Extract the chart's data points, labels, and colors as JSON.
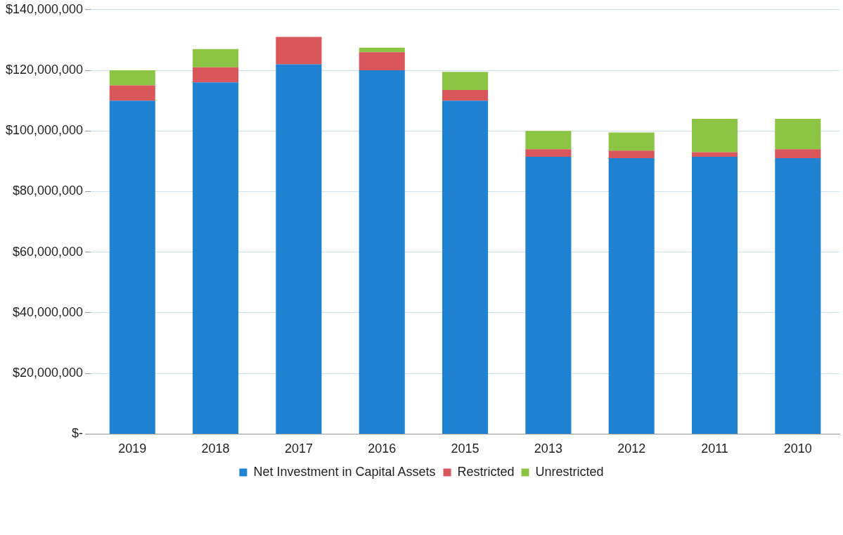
{
  "chart_data": {
    "type": "bar",
    "stacked": true,
    "categories": [
      "2019",
      "2018",
      "2017",
      "2016",
      "2015",
      "2013",
      "2012",
      "2011",
      "2010"
    ],
    "series": [
      {
        "name": "Net Investment in Capital Assets",
        "color": "#1f82d2",
        "values": [
          110000000,
          116000000,
          122000000,
          120000000,
          110000000,
          91500000,
          91000000,
          91500000,
          91000000
        ]
      },
      {
        "name": "Restricted",
        "color": "#d9575a",
        "values": [
          5000000,
          5000000,
          9000000,
          6000000,
          3500000,
          2500000,
          2500000,
          1500000,
          3000000
        ]
      },
      {
        "name": "Unrestricted",
        "color": "#8cc443",
        "values": [
          5000000,
          6000000,
          0,
          1500000,
          6000000,
          6000000,
          6000000,
          11000000,
          10000000
        ]
      }
    ],
    "ylim": [
      0,
      140000000
    ],
    "yticks": [
      {
        "value": 0,
        "label": "$-"
      },
      {
        "value": 20000000,
        "label": "$20,000,000"
      },
      {
        "value": 40000000,
        "label": "$40,000,000"
      },
      {
        "value": 60000000,
        "label": "$60,000,000"
      },
      {
        "value": 80000000,
        "label": "$80,000,000"
      },
      {
        "value": 100000000,
        "label": "$100,000,000"
      },
      {
        "value": 120000000,
        "label": "$120,000,000"
      },
      {
        "value": 140000000,
        "label": "$140,000,000"
      }
    ],
    "grid": "y",
    "legend": "bottom"
  }
}
